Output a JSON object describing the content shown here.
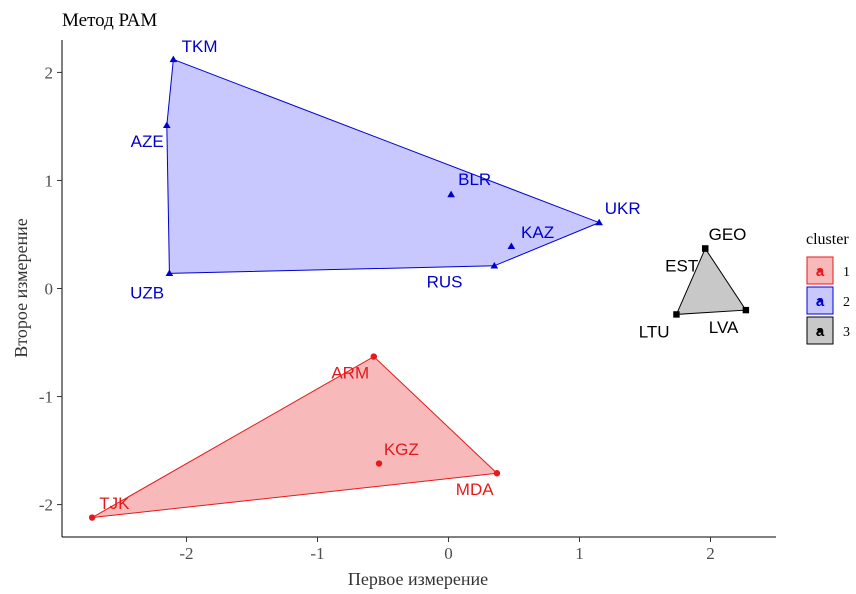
{
  "chart_data": {
    "type": "scatter",
    "title": "Метод РАМ",
    "xlabel": "Первое измерение",
    "ylabel": "Второе измерение",
    "xlim": [
      -2.95,
      2.5
    ],
    "ylim": [
      -2.3,
      2.3
    ],
    "x_ticks": [
      -2,
      -1,
      0,
      1,
      2
    ],
    "y_ticks": [
      -2,
      -1,
      0,
      1,
      2
    ],
    "grid": false,
    "legend": {
      "title": "cluster",
      "position": "right",
      "key_glyph": "a",
      "entries": [
        {
          "label": "1",
          "color": "#e41a1c",
          "fill": "#f7b9b9",
          "shape": "circle"
        },
        {
          "label": "2",
          "color": "#0000cc",
          "fill": "#c8c8ff",
          "shape": "triangle"
        },
        {
          "label": "3",
          "color": "#000000",
          "fill": "#c8c8c8",
          "shape": "square"
        }
      ]
    },
    "series": [
      {
        "name": "1",
        "color": "#e41a1c",
        "fill": "#f7b9b9",
        "shape": "circle",
        "hull": [
          "TJK",
          "ARM",
          "MDA"
        ],
        "points": [
          {
            "label": "ARM",
            "x": -0.57,
            "y": -0.63,
            "lx": -0.75,
            "ly": -0.79
          },
          {
            "label": "KGZ",
            "x": -0.53,
            "y": -1.62,
            "lx": -0.36,
            "ly": -1.5
          },
          {
            "label": "MDA",
            "x": 0.37,
            "y": -1.71,
            "lx": 0.2,
            "ly": -1.87
          },
          {
            "label": "TJK",
            "x": -2.72,
            "y": -2.12,
            "lx": -2.55,
            "ly": -2.0
          }
        ]
      },
      {
        "name": "2",
        "color": "#0000cc",
        "fill": "#c8c8ff",
        "shape": "triangle",
        "hull": [
          "TKM",
          "UKR",
          "RUS",
          "UZB",
          "AZE"
        ],
        "points": [
          {
            "label": "TKM",
            "x": -2.1,
            "y": 2.12,
            "lx": -1.9,
            "ly": 2.23
          },
          {
            "label": "AZE",
            "x": -2.15,
            "y": 1.51,
            "lx": -2.3,
            "ly": 1.35
          },
          {
            "label": "BLR",
            "x": 0.02,
            "y": 0.87,
            "lx": 0.2,
            "ly": 1.0
          },
          {
            "label": "UKR",
            "x": 1.15,
            "y": 0.61,
            "lx": 1.33,
            "ly": 0.73
          },
          {
            "label": "KAZ",
            "x": 0.48,
            "y": 0.39,
            "lx": 0.68,
            "ly": 0.51
          },
          {
            "label": "RUS",
            "x": 0.35,
            "y": 0.21,
            "lx": -0.03,
            "ly": 0.05
          },
          {
            "label": "UZB",
            "x": -2.13,
            "y": 0.14,
            "lx": -2.3,
            "ly": -0.05
          }
        ]
      },
      {
        "name": "3",
        "color": "#000000",
        "fill": "#c8c8c8",
        "shape": "square",
        "hull": [
          "GEO",
          "LVA",
          "LTU"
        ],
        "points": [
          {
            "label": "GEO",
            "x": 1.96,
            "y": 0.37,
            "lx": 2.13,
            "ly": 0.49
          },
          {
            "label": "EST",
            "x": 1.96,
            "y": 0.37,
            "lx": 1.78,
            "ly": 0.2
          },
          {
            "label": "LVA",
            "x": 2.27,
            "y": -0.2,
            "lx": 2.1,
            "ly": -0.37
          },
          {
            "label": "LTU",
            "x": 1.74,
            "y": -0.24,
            "lx": 1.57,
            "ly": -0.41
          }
        ]
      }
    ]
  }
}
